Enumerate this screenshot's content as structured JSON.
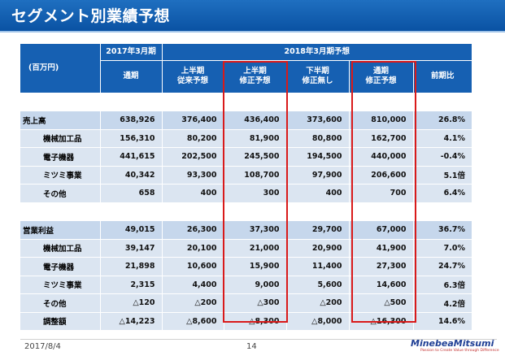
{
  "title": "セグメント別業績予想",
  "header": {
    "unit": "(百万円)",
    "fy2017": "2017年3月期",
    "fy2017_sub": "通期",
    "fy2018": "2018年3月期予想",
    "cols": [
      {
        "l1": "上半期",
        "l2": "従来予想"
      },
      {
        "l1": "上半期",
        "l2": "修正予想"
      },
      {
        "l1": "下半期",
        "l2": "修正無し"
      },
      {
        "l1": "通期",
        "l2": "修正予想"
      }
    ],
    "yoy": "前期比"
  },
  "sales": [
    {
      "label": "売上高",
      "values": [
        "638,926",
        "376,400",
        "436,400",
        "373,600",
        "810,000",
        "26.8%"
      ]
    },
    {
      "label": "機械加工品",
      "values": [
        "156,310",
        "80,200",
        "81,900",
        "80,800",
        "162,700",
        "4.1%"
      ]
    },
    {
      "label": "電子機器",
      "values": [
        "441,615",
        "202,500",
        "245,500",
        "194,500",
        "440,000",
        "-0.4%"
      ]
    },
    {
      "label": "ミツミ事業",
      "values": [
        "40,342",
        "93,300",
        "108,700",
        "97,900",
        "206,600",
        "5.1倍"
      ]
    },
    {
      "label": "その他",
      "values": [
        "658",
        "400",
        "300",
        "400",
        "700",
        "6.4%"
      ]
    }
  ],
  "profit": [
    {
      "label": "営業利益",
      "values": [
        "49,015",
        "26,300",
        "37,300",
        "29,700",
        "67,000",
        "36.7%"
      ]
    },
    {
      "label": "機械加工品",
      "values": [
        "39,147",
        "20,100",
        "21,000",
        "20,900",
        "41,900",
        "7.0%"
      ]
    },
    {
      "label": "電子機器",
      "values": [
        "21,898",
        "10,600",
        "15,900",
        "11,400",
        "27,300",
        "24.7%"
      ]
    },
    {
      "label": "ミツミ事業",
      "values": [
        "2,315",
        "4,400",
        "9,000",
        "5,600",
        "14,600",
        "6.3倍"
      ]
    },
    {
      "label": "その他",
      "values": [
        "△120",
        "△200",
        "△300",
        "△200",
        "△500",
        "4.2倍"
      ]
    },
    {
      "label": "調整額",
      "values": [
        "△14,223",
        "△8,600",
        "△8,300",
        "△8,000",
        "△16,300",
        "14.6%"
      ]
    }
  ],
  "footer": {
    "date": "2017/8/4",
    "page": "14",
    "logo": "MinebeaMitsumi",
    "tagline": "Passion to Create Value through Difference"
  },
  "colors": {
    "header_blue": "#1660b2",
    "row_light": "#dbe5f1",
    "row_total": "#c6d7ec",
    "highlight_red": "#d91a1a"
  }
}
